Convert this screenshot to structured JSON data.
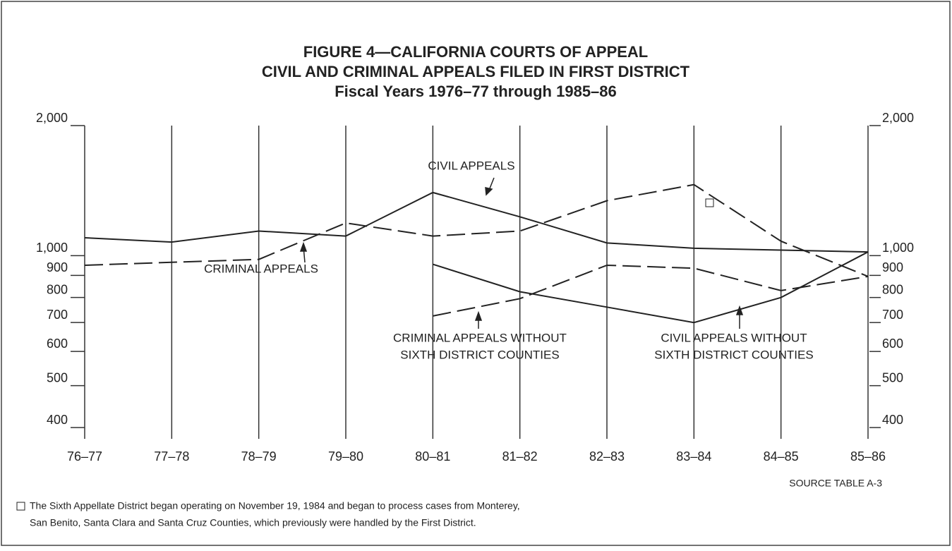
{
  "chart_data": {
    "type": "line",
    "title": [
      "FIGURE 4—CALIFORNIA COURTS OF APPEAL",
      "CIVIL AND CRIMINAL APPEALS FILED IN FIRST DISTRICT"
    ],
    "subtitle": "Fiscal Years 1976–77 through 1985–86",
    "categories": [
      "76–77",
      "77–78",
      "78–79",
      "79–80",
      "80–81",
      "81–82",
      "82–83",
      "83–84",
      "84–85",
      "85–86"
    ],
    "series": [
      {
        "name": "CIVIL APPEALS",
        "color": "#222222",
        "style": "solid",
        "values": [
          1100,
          1075,
          1140,
          1110,
          1400,
          1230,
          1070,
          1040,
          1030,
          1020
        ]
      },
      {
        "name": "CRIMINAL APPEALS",
        "color": "#222222",
        "style": "dashed",
        "values": [
          950,
          965,
          980,
          1190,
          1110,
          1140,
          1340,
          1460,
          1080,
          895
        ]
      },
      {
        "name": "CIVIL APPEALS WITHOUT SIXTH DISTRICT COUNTIES",
        "color": "#222222",
        "style": "solid",
        "values": [
          null,
          null,
          null,
          null,
          955,
          825,
          760,
          700,
          800,
          1020
        ]
      },
      {
        "name": "CRIMINAL APPEALS WITHOUT SIXTH DISTRICT COUNTIES",
        "color": "#222222",
        "style": "dashed",
        "values": [
          null,
          null,
          null,
          null,
          725,
          795,
          950,
          935,
          830,
          895
        ]
      }
    ],
    "log_scale": true,
    "ylim": [
      400,
      2000
    ],
    "yticks": [
      400,
      500,
      600,
      700,
      800,
      900,
      {
        "value": 1000,
        "label": "1,000"
      },
      {
        "value": 2000,
        "label": "2,000"
      }
    ],
    "annotations": [
      [
        "CIVIL APPEALS"
      ],
      [
        "CRIMINAL APPEALS"
      ],
      [
        "CRIMINAL APPEALS WITHOUT",
        "SIXTH DISTRICT COUNTIES"
      ],
      [
        "CIVIL APPEALS WITHOUT",
        "SIXTH DISTRICT COUNTIES"
      ]
    ],
    "source": "SOURCE  TABLE A-3",
    "notes": [
      "The Sixth Appellate District began operating on November 19, 1984 and began to process cases from Monterey,",
      "San Benito, Santa Clara and Santa Cruz Counties, which previously were handled by the First District."
    ]
  }
}
